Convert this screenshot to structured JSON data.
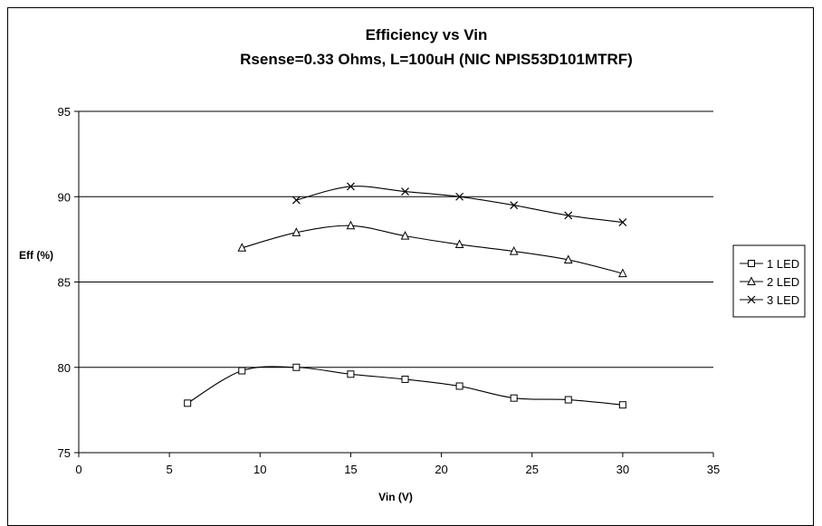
{
  "chart_data": {
    "type": "line",
    "title": "Efficiency vs Vin",
    "subtitle": "Rsense=0.33 Ohms, L=100uH (NIC NPIS53D101MTRF)",
    "xlabel": "Vin (V)",
    "ylabel": "Eff (%)",
    "xlim": [
      0,
      35
    ],
    "ylim": [
      75,
      95
    ],
    "xticks": [
      "0",
      "5",
      "10",
      "15",
      "20",
      "25",
      "30",
      "35"
    ],
    "yticks": [
      "75",
      "80",
      "85",
      "90",
      "95"
    ],
    "grid": "horizontal major",
    "legend_position": "right",
    "series": [
      {
        "name": "1 LED",
        "marker": "square",
        "x": [
          6,
          9,
          12,
          15,
          18,
          21,
          24,
          27,
          30
        ],
        "y": [
          77.9,
          79.8,
          80.0,
          79.6,
          79.3,
          78.9,
          78.2,
          78.1,
          77.8
        ]
      },
      {
        "name": "2 LED",
        "marker": "triangle",
        "x": [
          9,
          12,
          15,
          18,
          21,
          24,
          27,
          30
        ],
        "y": [
          87.0,
          87.9,
          88.3,
          87.7,
          87.2,
          86.8,
          86.3,
          85.5
        ]
      },
      {
        "name": "3 LED",
        "marker": "x",
        "x": [
          12,
          15,
          18,
          21,
          24,
          27,
          30
        ],
        "y": [
          89.8,
          90.6,
          90.3,
          90.0,
          89.5,
          88.9,
          88.5
        ]
      }
    ]
  }
}
